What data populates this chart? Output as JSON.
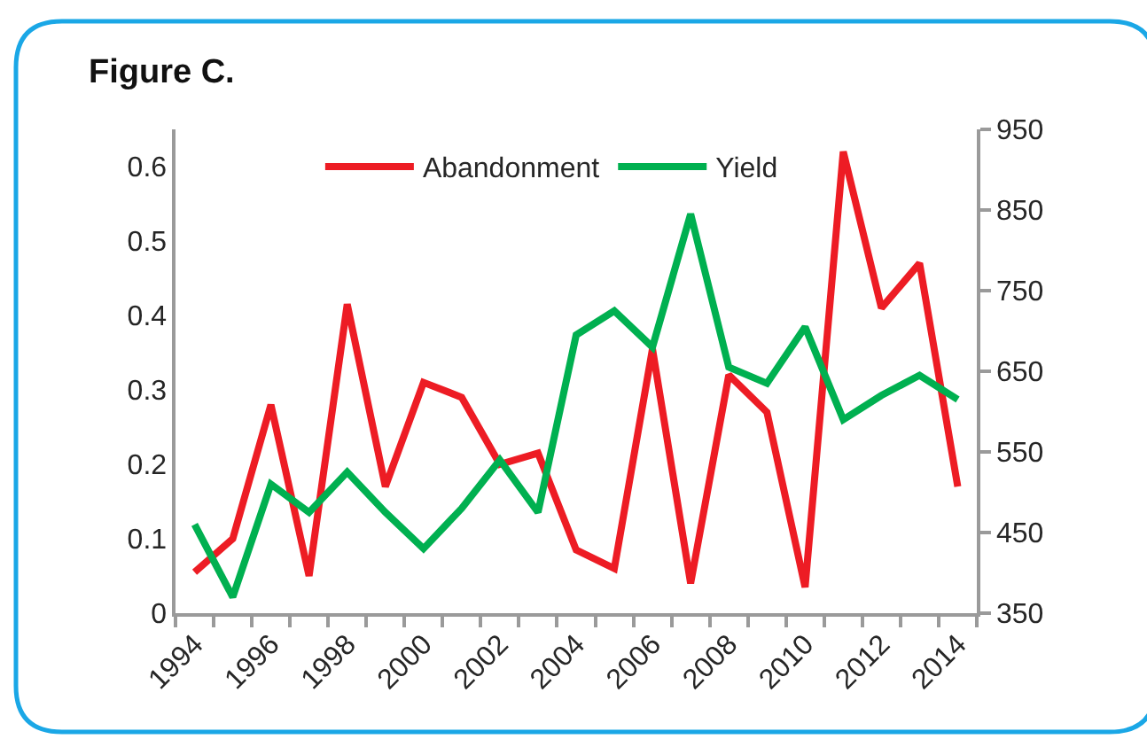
{
  "chart_data": {
    "type": "line",
    "title": "Figure C.",
    "categories": [
      "1994",
      null,
      "1996",
      null,
      "1998",
      null,
      "2000",
      null,
      "2002",
      null,
      "2004",
      null,
      "2006",
      null,
      "2008",
      null,
      "2010",
      null,
      "2012",
      null,
      "2014"
    ],
    "series": [
      {
        "name": "Abandonment",
        "color": "#ed1c24",
        "values": [
          0.055,
          0.1,
          0.28,
          0.05,
          0.415,
          0.17,
          0.31,
          0.29,
          0.2,
          0.215,
          0.085,
          0.06,
          0.355,
          0.04,
          0.32,
          0.27,
          0.035,
          0.62,
          0.41,
          0.47,
          0.17
        ]
      },
      {
        "name": "Yield",
        "color": "#00b050",
        "axis": "y2",
        "values": [
          460,
          370,
          510,
          475,
          525,
          475,
          430,
          480,
          540,
          475,
          695,
          725,
          680,
          845,
          655,
          635,
          705,
          590,
          620,
          645,
          615
        ]
      }
    ],
    "ylim": [
      0,
      0.65
    ],
    "yticks": [
      0,
      0.1,
      0.2,
      0.3,
      0.4,
      0.5,
      0.6
    ],
    "y2lim": [
      350,
      950
    ],
    "y2ticks": [
      350,
      450,
      550,
      650,
      750,
      850,
      950
    ],
    "legend": "top",
    "marker": "none",
    "line_style": "solid"
  }
}
